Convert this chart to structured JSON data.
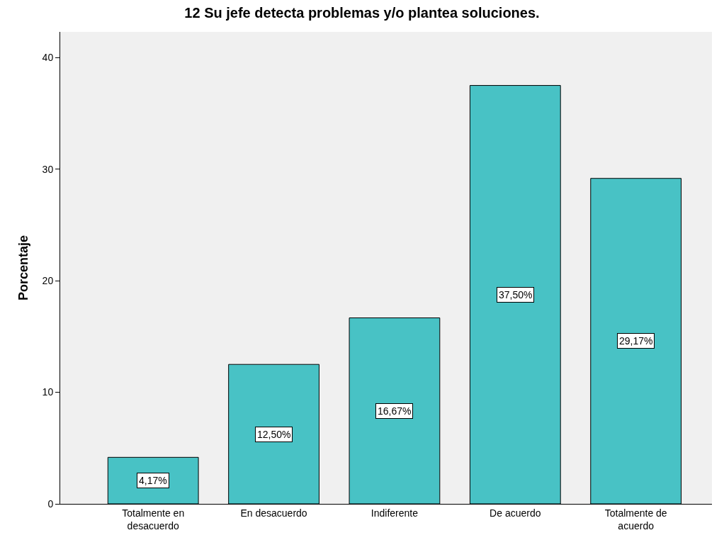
{
  "chart_data": {
    "type": "bar",
    "title": "12 Su jefe detecta problemas y/o plantea soluciones.",
    "ylabel": "Porcentaje",
    "categories": [
      "Totalmente en\ndesacuerdo",
      "En desacuerdo",
      "Indiferente",
      "De acuerdo",
      "Totalmente de\nacuerdo"
    ],
    "values": [
      4.17,
      12.5,
      16.67,
      37.5,
      29.17
    ],
    "value_labels": [
      "4,17%",
      "12,50%",
      "16,67%",
      "37,50%",
      "29,17%"
    ],
    "color": "#48c2c5",
    "ylim": [
      0,
      42.3
    ],
    "yticks": [
      0,
      10,
      20,
      30,
      40
    ],
    "grid": false
  }
}
